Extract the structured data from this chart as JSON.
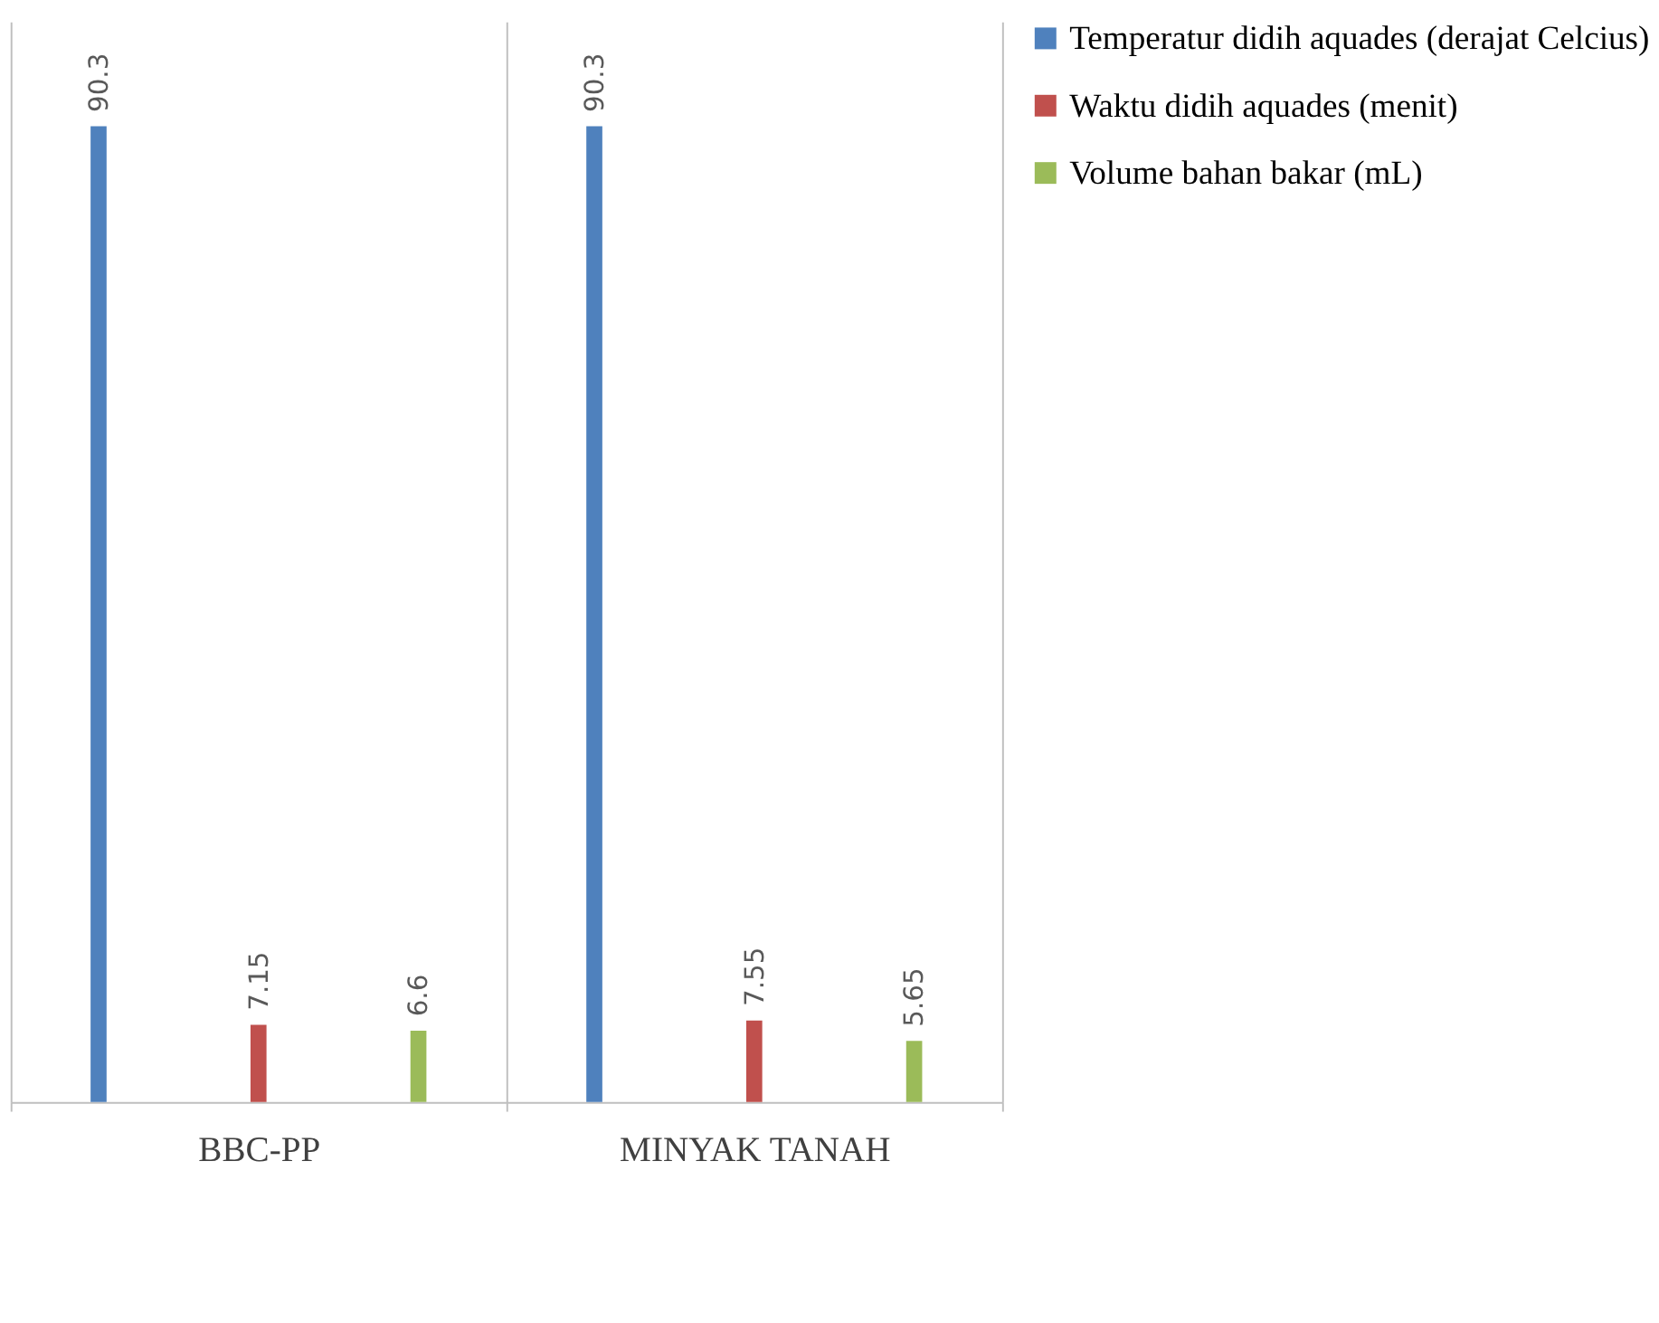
{
  "chart_data": {
    "type": "bar",
    "categories": [
      "BBC-PP",
      "MINYAK TANAH"
    ],
    "series": [
      {
        "name": "Temperatur didih aquades (derajat Celcius)",
        "color": "#4f81bd",
        "values": [
          90.3,
          90.3
        ]
      },
      {
        "name": "Waktu didih aquades (menit)",
        "color": "#c0504d",
        "values": [
          7.15,
          7.55
        ]
      },
      {
        "name": "Volume bahan bakar (mL)",
        "color": "#9bbb59",
        "values": [
          6.6,
          5.65
        ]
      }
    ],
    "data_labels": true,
    "legend": "right",
    "grid": "x"
  }
}
